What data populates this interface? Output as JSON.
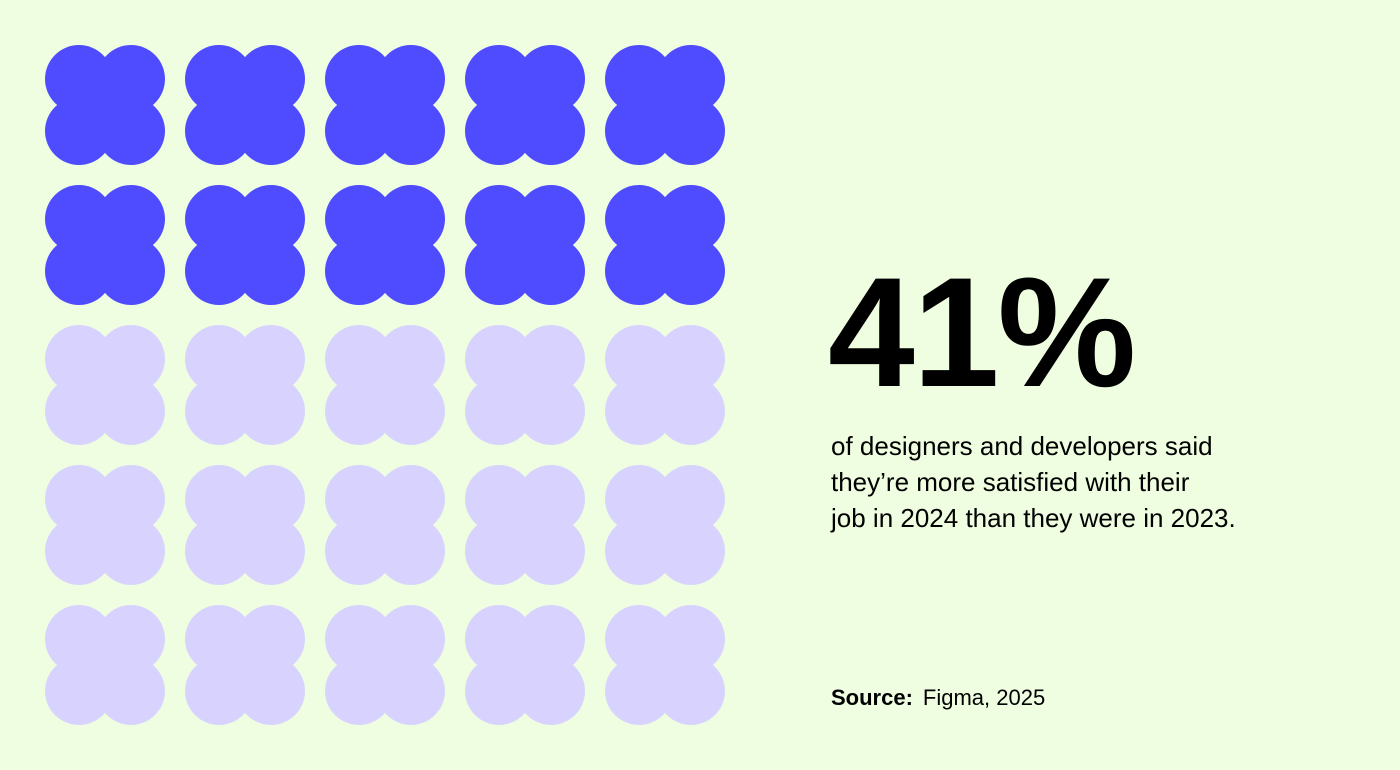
{
  "chart_data": {
    "type": "waffle",
    "rows": 5,
    "columns": 5,
    "total_units": 25,
    "filled_units": 10,
    "headline_value": "41%",
    "colors": {
      "filled": "#4f4bff",
      "empty": "#d8d3fe",
      "background": "#effee0"
    }
  },
  "headline": "41%",
  "description": "of designers and developers said they’re more satisfied with their job in 2024 than they were in 2023.",
  "description_lines": [
    "of designers and developers said",
    "they’re more satisfied with their",
    "job in 2024 than they were in 2023."
  ],
  "source_label": "Source:",
  "source_value": "Figma, 2025"
}
